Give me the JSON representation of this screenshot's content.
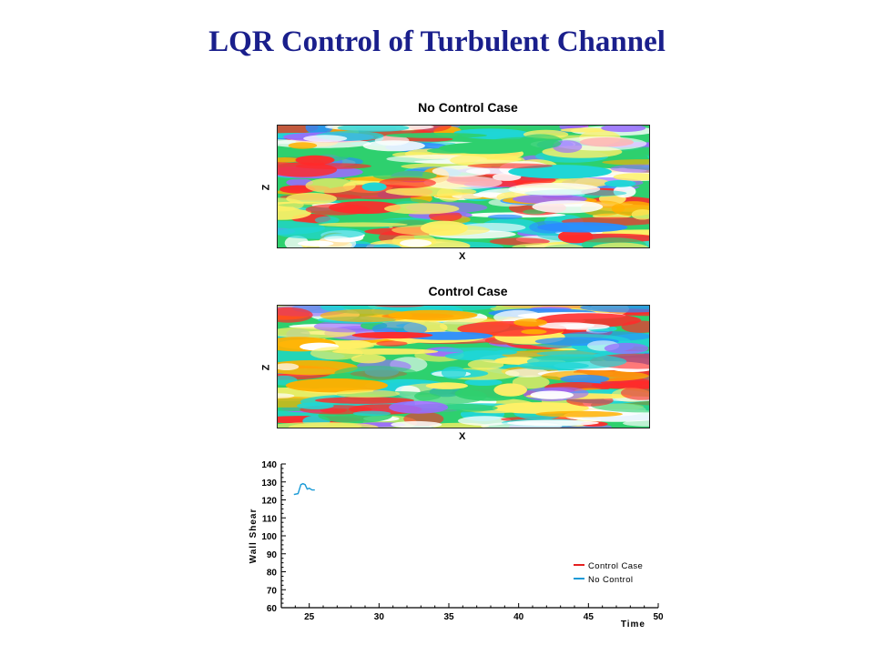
{
  "slide": {
    "title": "LQR Control of Turbulent Channel"
  },
  "panels": [
    {
      "title": "No Control Case",
      "xlabel": "X",
      "zlabel": "Z"
    },
    {
      "title": "Control Case",
      "xlabel": "X",
      "zlabel": "Z"
    }
  ],
  "colors": {
    "title": "#1a1f8c",
    "field_palette": [
      "#2a8cff",
      "#9b6bff",
      "#1fd6d6",
      "#2ed06e",
      "#ffffff",
      "#fff066",
      "#ffb000",
      "#ff2a2a"
    ],
    "control_line": "#e52020",
    "no_control_line": "#1a9ad6"
  },
  "chart_data": {
    "type": "line",
    "title": "",
    "xlabel": "Time",
    "ylabel": "Wall Shear",
    "xlim": [
      23,
      50
    ],
    "ylim": [
      60,
      140
    ],
    "xticks": [
      25,
      30,
      35,
      40,
      45,
      50
    ],
    "yticks": [
      60,
      70,
      80,
      90,
      100,
      110,
      120,
      130,
      140
    ],
    "legend_position": "bottom-right",
    "series": [
      {
        "name": "Control Case",
        "color": "#e52020",
        "x": [],
        "y": []
      },
      {
        "name": "No Control",
        "color": "#1a9ad6",
        "x": [
          23.9,
          24.2,
          24.4,
          24.55,
          24.7,
          24.85,
          25.0,
          25.2,
          25.4
        ],
        "y": [
          123,
          123.5,
          128.5,
          129,
          128.5,
          126,
          126.5,
          125.5,
          125.5
        ]
      }
    ]
  }
}
